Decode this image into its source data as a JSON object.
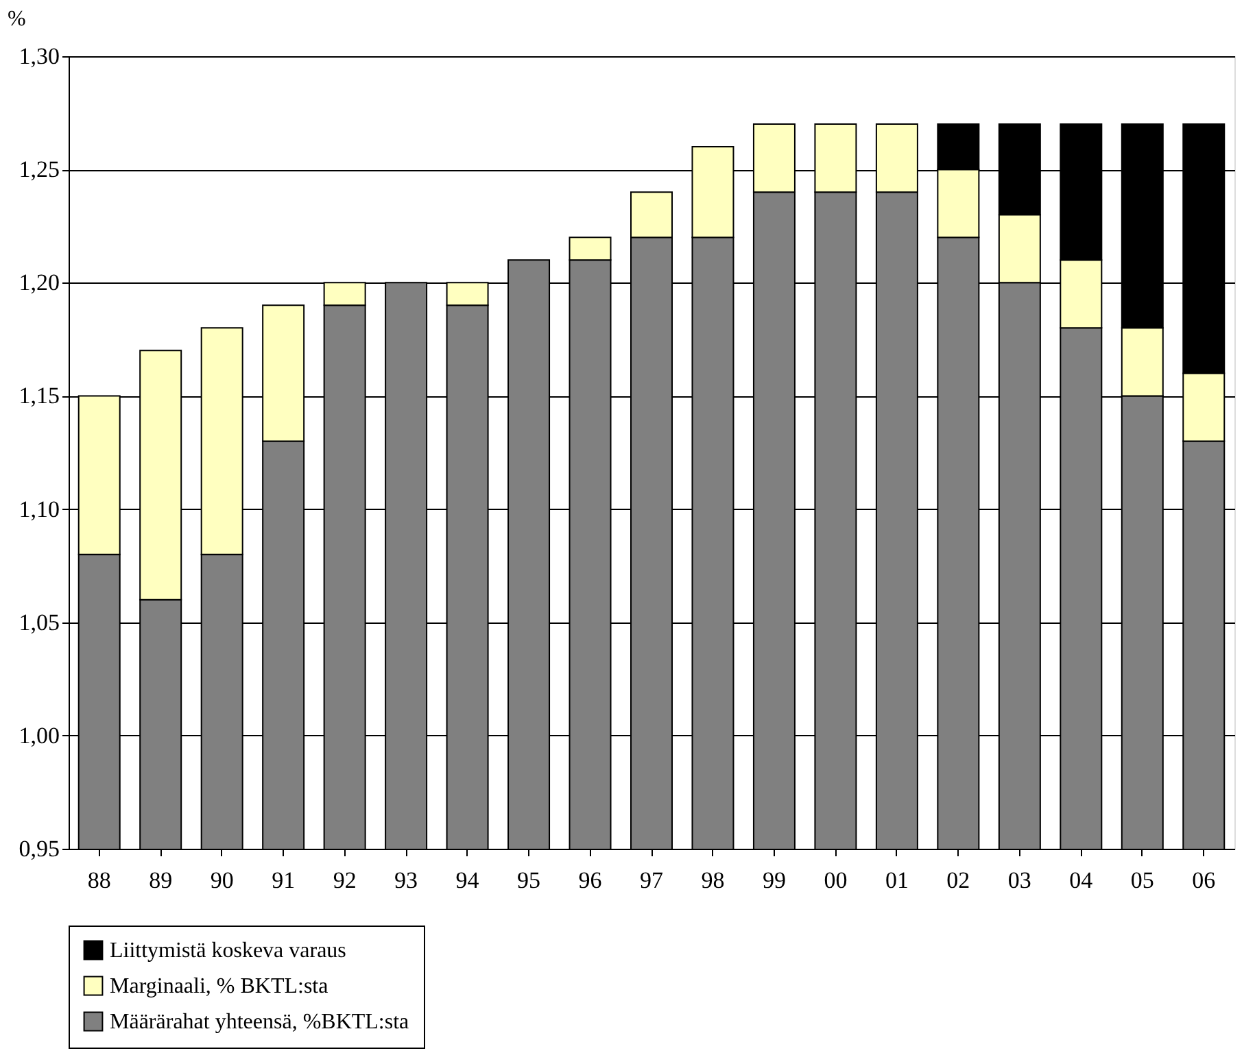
{
  "chart_data": {
    "type": "bar",
    "stacked": true,
    "ylabel": "%",
    "categories": [
      "88",
      "89",
      "90",
      "91",
      "92",
      "93",
      "94",
      "95",
      "96",
      "97",
      "98",
      "99",
      "00",
      "01",
      "02",
      "03",
      "04",
      "05",
      "06"
    ],
    "series": [
      {
        "name": "Määrärahat yhteensä, %BKTL:sta",
        "color": "#808080",
        "values": [
          1.08,
          1.06,
          1.08,
          1.13,
          1.19,
          1.2,
          1.19,
          1.21,
          1.21,
          1.22,
          1.22,
          1.24,
          1.24,
          1.24,
          1.22,
          1.2,
          1.18,
          1.15,
          1.13
        ]
      },
      {
        "name": "Marginaali, % BKTL:sta",
        "color": "#ffffc0",
        "base": [
          1.08,
          1.06,
          1.08,
          1.13,
          1.19,
          null,
          1.19,
          null,
          1.21,
          1.22,
          1.22,
          1.24,
          1.24,
          1.24,
          1.22,
          1.2,
          1.18,
          1.15,
          1.13
        ],
        "values": [
          0.07,
          0.11,
          0.1,
          0.06,
          0.01,
          null,
          0.01,
          null,
          0.01,
          0.02,
          0.04,
          0.03,
          0.03,
          0.03,
          0.03,
          0.03,
          0.03,
          0.03,
          0.03
        ]
      },
      {
        "name": "Liittymistä koskeva varaus",
        "color": "#000000",
        "base": [
          null,
          null,
          null,
          null,
          null,
          null,
          null,
          null,
          null,
          null,
          null,
          null,
          null,
          null,
          1.25,
          1.23,
          1.21,
          1.18,
          1.16
        ],
        "values": [
          null,
          null,
          null,
          null,
          null,
          null,
          null,
          null,
          null,
          null,
          null,
          null,
          null,
          null,
          0.02,
          0.04,
          0.06,
          0.09,
          0.11
        ]
      }
    ],
    "ylim": [
      0.95,
      1.3
    ],
    "yticks": [
      {
        "value": 0.95,
        "label": "0,95"
      },
      {
        "value": 1.0,
        "label": "1,00"
      },
      {
        "value": 1.05,
        "label": "1,05"
      },
      {
        "value": 1.1,
        "label": "1,10"
      },
      {
        "value": 1.15,
        "label": "1,15"
      },
      {
        "value": 1.2,
        "label": "1,20"
      },
      {
        "value": 1.25,
        "label": "1,25"
      },
      {
        "value": 1.3,
        "label": "1,30"
      }
    ],
    "grid": "y",
    "legend": "bottom"
  }
}
